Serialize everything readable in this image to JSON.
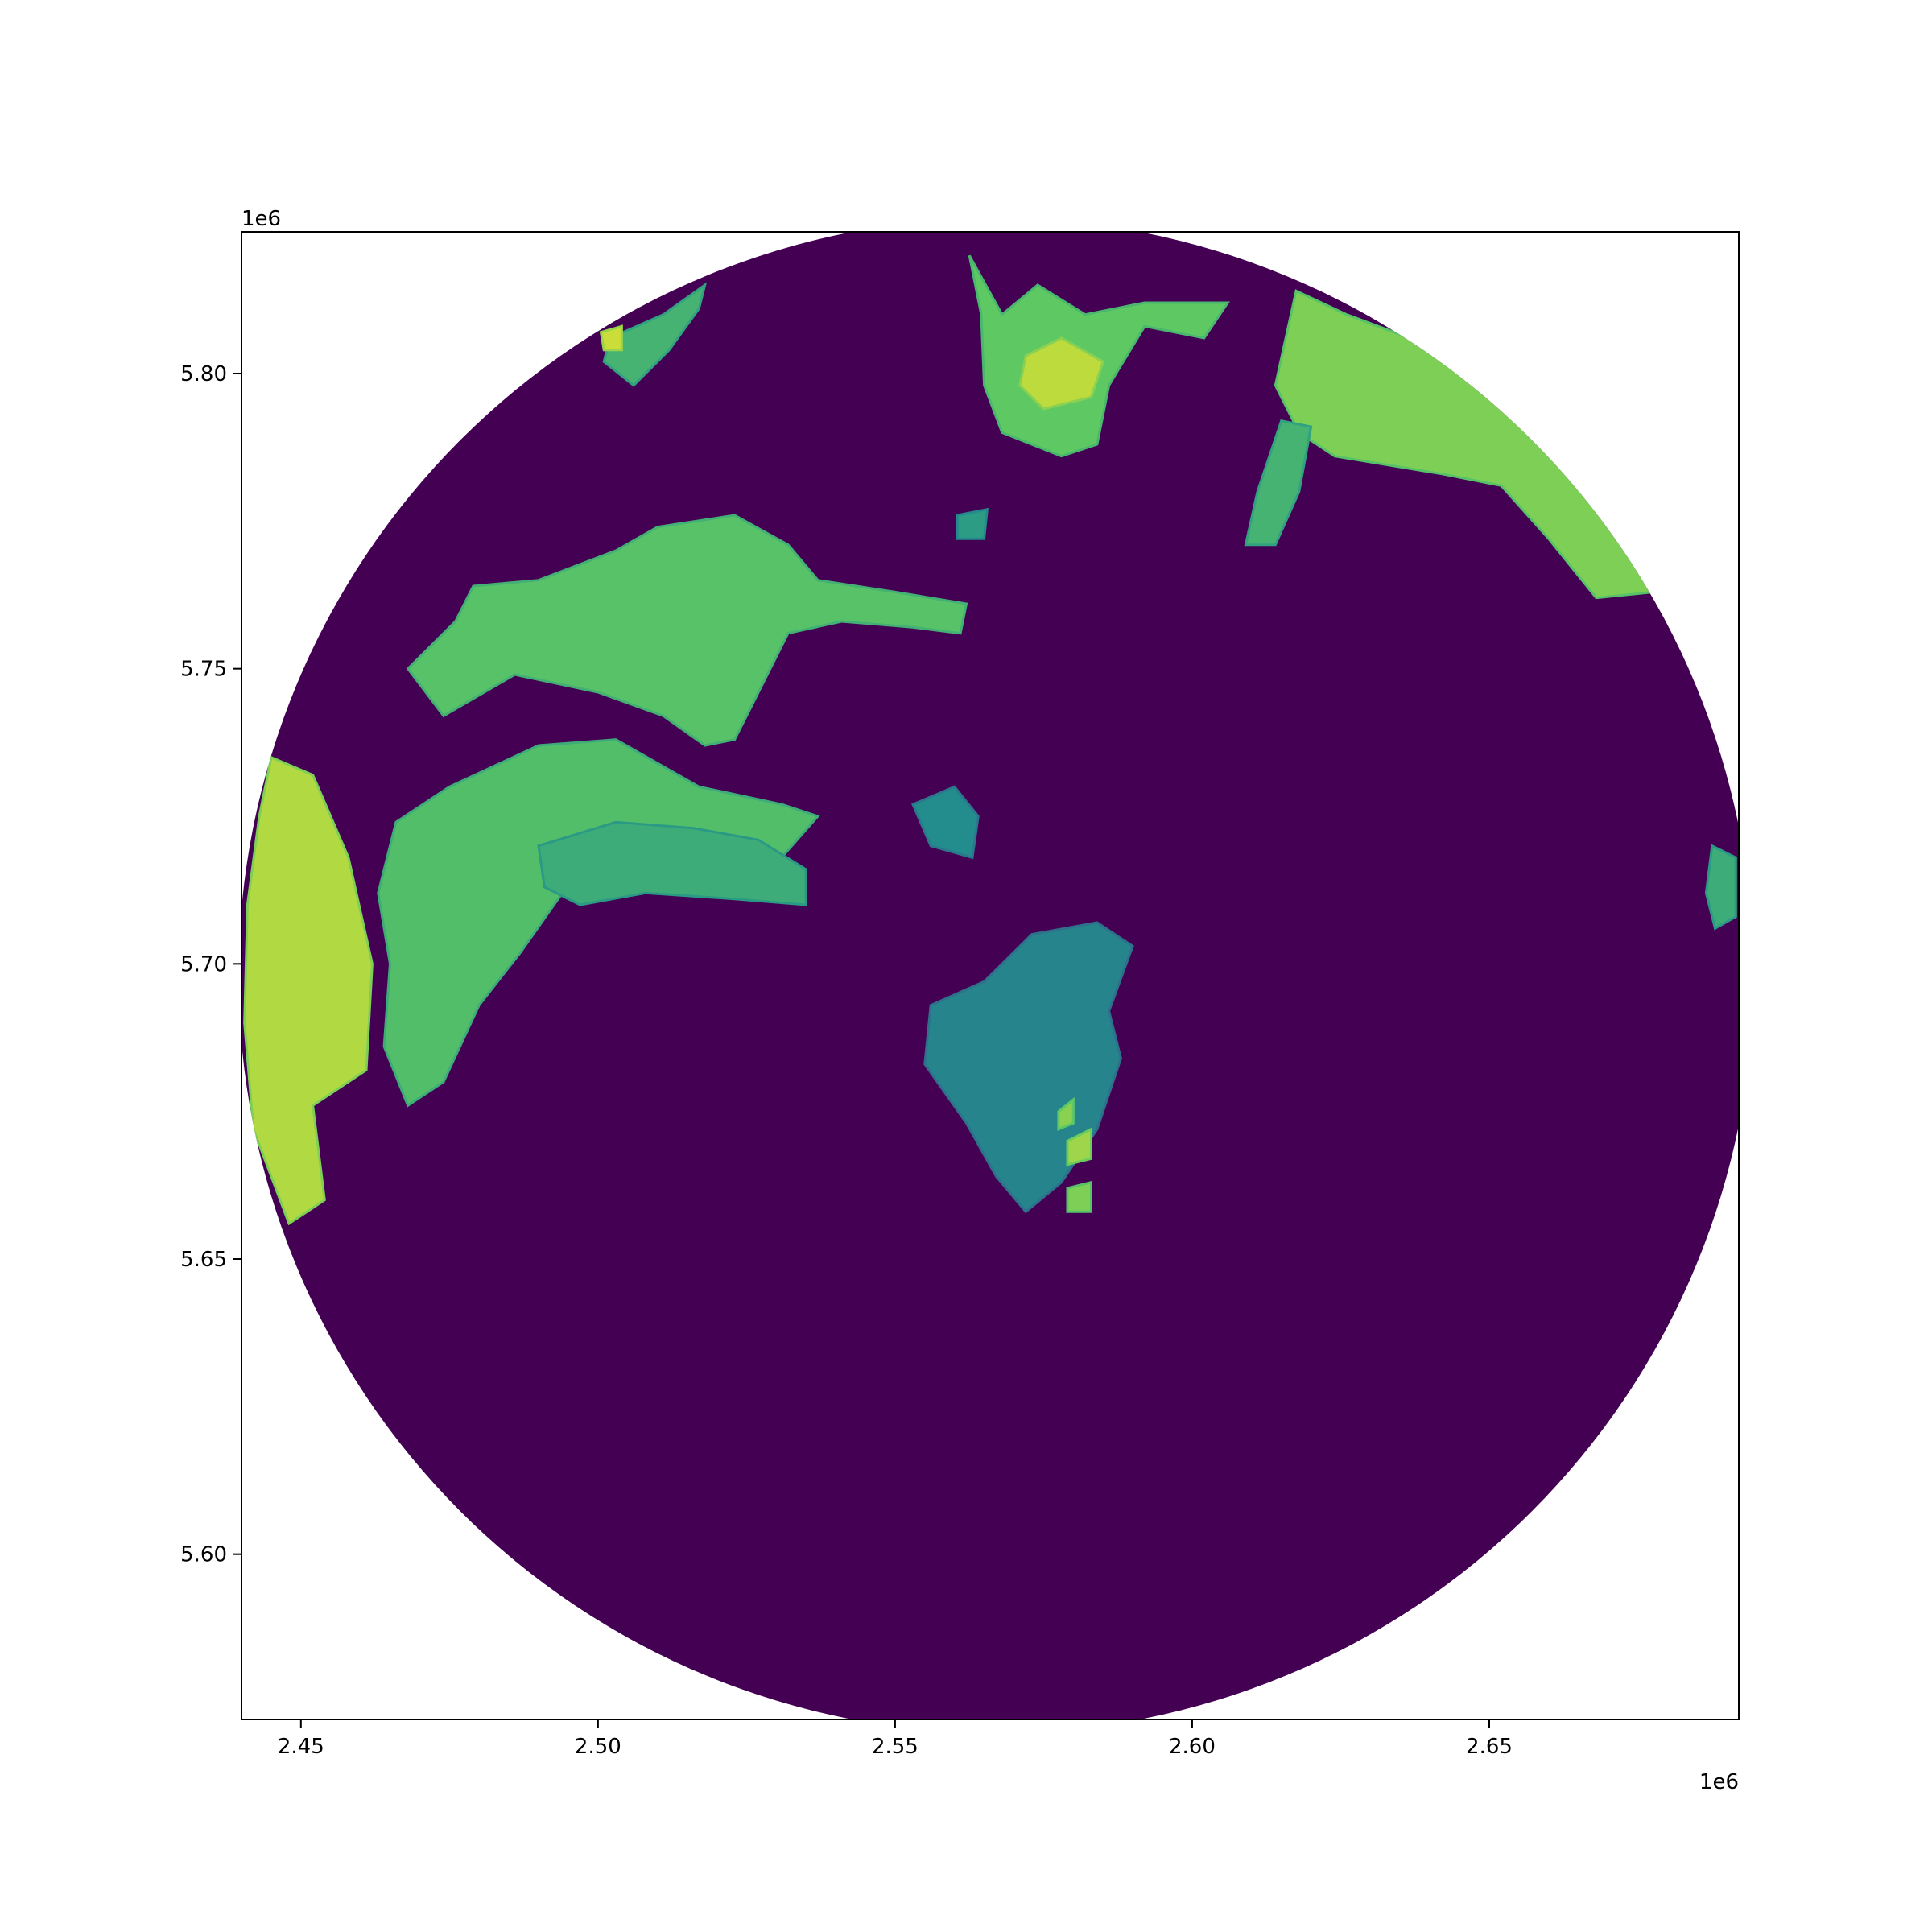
{
  "chart_data": {
    "type": "heatmap",
    "title": "",
    "xlabel": "",
    "ylabel": "",
    "x_offset_label": "1e6",
    "y_offset_label": "1e6",
    "xlim": [
      2.44,
      2.692
    ],
    "ylim": [
      5.572,
      5.824
    ],
    "xticks": [
      {
        "value": 2.45,
        "label": "2.45"
      },
      {
        "value": 2.5,
        "label": "2.50"
      },
      {
        "value": 2.55,
        "label": "2.55"
      },
      {
        "value": 2.6,
        "label": "2.60"
      },
      {
        "value": 2.65,
        "label": "2.65"
      }
    ],
    "yticks": [
      {
        "value": 5.6,
        "label": "5.60"
      },
      {
        "value": 5.65,
        "label": "5.65"
      },
      {
        "value": 5.7,
        "label": "5.70"
      },
      {
        "value": 5.75,
        "label": "5.75"
      },
      {
        "value": 5.8,
        "label": "5.80"
      }
    ],
    "grid": false,
    "colormap": "viridis",
    "background_color": "#440154",
    "coverage": {
      "center": [
        2.567,
        5.698
      ],
      "radius": 0.1275
    },
    "regions": [
      {
        "id": "north-cell",
        "level": 0.75,
        "polygon": [
          [
            2.5625,
            5.82
          ],
          [
            2.568,
            5.81
          ],
          [
            2.574,
            5.815
          ],
          [
            2.582,
            5.81
          ],
          [
            2.592,
            5.812
          ],
          [
            2.606,
            5.812
          ],
          [
            2.602,
            5.806
          ],
          [
            2.592,
            5.808
          ],
          [
            2.586,
            5.798
          ],
          [
            2.584,
            5.788
          ],
          [
            2.578,
            5.786
          ],
          [
            2.568,
            5.79
          ],
          [
            2.565,
            5.798
          ],
          [
            2.5645,
            5.81
          ]
        ]
      },
      {
        "id": "north-cell-core",
        "level": 0.9,
        "polygon": [
          [
            2.572,
            5.803
          ],
          [
            2.578,
            5.806
          ],
          [
            2.585,
            5.802
          ],
          [
            2.583,
            5.796
          ],
          [
            2.575,
            5.794
          ],
          [
            2.571,
            5.798
          ]
        ]
      },
      {
        "id": "northeast-edge",
        "level": 0.8,
        "polygon": [
          [
            2.6175,
            5.814
          ],
          [
            2.626,
            5.81
          ],
          [
            2.642,
            5.804
          ],
          [
            2.656,
            5.795
          ],
          [
            2.668,
            5.779
          ],
          [
            2.678,
            5.763
          ],
          [
            2.668,
            5.762
          ],
          [
            2.66,
            5.772
          ],
          [
            2.652,
            5.781
          ],
          [
            2.642,
            5.783
          ],
          [
            2.624,
            5.786
          ],
          [
            2.618,
            5.79
          ],
          [
            2.614,
            5.798
          ]
        ]
      },
      {
        "id": "northeast-finger",
        "level": 0.65,
        "polygon": [
          [
            2.615,
            5.792
          ],
          [
            2.62,
            5.791
          ],
          [
            2.618,
            5.78
          ],
          [
            2.614,
            5.771
          ],
          [
            2.609,
            5.771
          ],
          [
            2.611,
            5.78
          ]
        ]
      },
      {
        "id": "northwest-cells",
        "level": 0.65,
        "polygon": [
          [
            2.502,
            5.806
          ],
          [
            2.511,
            5.81
          ],
          [
            2.518,
            5.815
          ],
          [
            2.517,
            5.811
          ],
          [
            2.512,
            5.804
          ],
          [
            2.506,
            5.798
          ],
          [
            2.501,
            5.802
          ]
        ]
      },
      {
        "id": "northwest-core",
        "level": 0.92,
        "polygon": [
          [
            2.5005,
            5.807
          ],
          [
            2.504,
            5.808
          ],
          [
            2.504,
            5.804
          ],
          [
            2.501,
            5.804
          ]
        ]
      },
      {
        "id": "band-upper",
        "level": 0.72,
        "polygon": [
          [
            2.479,
            5.764
          ],
          [
            2.49,
            5.765
          ],
          [
            2.503,
            5.77
          ],
          [
            2.51,
            5.774
          ],
          [
            2.523,
            5.776
          ],
          [
            2.532,
            5.771
          ],
          [
            2.537,
            5.765
          ],
          [
            2.55,
            5.763
          ],
          [
            2.562,
            5.761
          ],
          [
            2.561,
            5.756
          ],
          [
            2.553,
            5.757
          ],
          [
            2.541,
            5.758
          ],
          [
            2.532,
            5.756
          ],
          [
            2.526,
            5.744
          ],
          [
            2.523,
            5.738
          ],
          [
            2.518,
            5.737
          ],
          [
            2.511,
            5.742
          ],
          [
            2.5,
            5.746
          ],
          [
            2.486,
            5.749
          ],
          [
            2.474,
            5.742
          ],
          [
            2.468,
            5.75
          ],
          [
            2.476,
            5.758
          ]
        ]
      },
      {
        "id": "band-middle",
        "level": 0.7,
        "polygon": [
          [
            2.466,
            5.724
          ],
          [
            2.475,
            5.73
          ],
          [
            2.49,
            5.737
          ],
          [
            2.503,
            5.738
          ],
          [
            2.517,
            5.73
          ],
          [
            2.531,
            5.727
          ],
          [
            2.537,
            5.725
          ],
          [
            2.53,
            5.717
          ],
          [
            2.519,
            5.714
          ],
          [
            2.504,
            5.716
          ],
          [
            2.494,
            5.712
          ],
          [
            2.487,
            5.702
          ],
          [
            2.48,
            5.693
          ],
          [
            2.474,
            5.68
          ],
          [
            2.468,
            5.676
          ],
          [
            2.464,
            5.686
          ],
          [
            2.465,
            5.7
          ],
          [
            2.463,
            5.712
          ]
        ]
      },
      {
        "id": "band-lower",
        "level": 0.62,
        "polygon": [
          [
            2.49,
            5.72
          ],
          [
            2.503,
            5.724
          ],
          [
            2.516,
            5.723
          ],
          [
            2.527,
            5.721
          ],
          [
            2.535,
            5.716
          ],
          [
            2.535,
            5.71
          ],
          [
            2.523,
            5.711
          ],
          [
            2.508,
            5.712
          ],
          [
            2.497,
            5.71
          ],
          [
            2.491,
            5.713
          ]
        ]
      },
      {
        "id": "west-edge",
        "level": 0.88,
        "polygon": [
          [
            2.445,
            5.735
          ],
          [
            2.452,
            5.732
          ],
          [
            2.458,
            5.718
          ],
          [
            2.462,
            5.7
          ],
          [
            2.461,
            5.682
          ],
          [
            2.452,
            5.676
          ],
          [
            2.454,
            5.66
          ],
          [
            2.448,
            5.656
          ],
          [
            2.442,
            5.672
          ],
          [
            2.4405,
            5.69
          ],
          [
            2.441,
            5.71
          ],
          [
            2.443,
            5.725
          ]
        ]
      },
      {
        "id": "central-scatter",
        "level": 0.45,
        "polygon": [
          [
            2.556,
            5.693
          ],
          [
            2.565,
            5.697
          ],
          [
            2.573,
            5.705
          ],
          [
            2.584,
            5.707
          ],
          [
            2.59,
            5.703
          ],
          [
            2.586,
            5.692
          ],
          [
            2.588,
            5.684
          ],
          [
            2.584,
            5.672
          ],
          [
            2.578,
            5.663
          ],
          [
            2.572,
            5.658
          ],
          [
            2.567,
            5.664
          ],
          [
            2.562,
            5.673
          ],
          [
            2.555,
            5.683
          ]
        ]
      },
      {
        "id": "central-core-1",
        "level": 0.85,
        "polygon": [
          [
            2.579,
            5.67
          ],
          [
            2.583,
            5.672
          ],
          [
            2.583,
            5.667
          ],
          [
            2.579,
            5.666
          ]
        ]
      },
      {
        "id": "central-core-2",
        "level": 0.82,
        "polygon": [
          [
            2.5775,
            5.675
          ],
          [
            2.58,
            5.677
          ],
          [
            2.58,
            5.673
          ],
          [
            2.5775,
            5.672
          ]
        ]
      },
      {
        "id": "central-core-3",
        "level": 0.8,
        "polygon": [
          [
            2.579,
            5.662
          ],
          [
            2.583,
            5.663
          ],
          [
            2.583,
            5.658
          ],
          [
            2.579,
            5.658
          ]
        ]
      },
      {
        "id": "central-small-north",
        "level": 0.48,
        "polygon": [
          [
            2.553,
            5.727
          ],
          [
            2.56,
            5.73
          ],
          [
            2.564,
            5.725
          ],
          [
            2.563,
            5.718
          ],
          [
            2.556,
            5.72
          ]
        ]
      },
      {
        "id": "east-edge",
        "level": 0.62,
        "polygon": [
          [
            2.6875,
            5.72
          ],
          [
            2.6915,
            5.718
          ],
          [
            2.6915,
            5.708
          ],
          [
            2.688,
            5.706
          ],
          [
            2.6865,
            5.712
          ]
        ]
      },
      {
        "id": "far-north-spur",
        "level": 0.55,
        "polygon": [
          [
            2.5605,
            5.776
          ],
          [
            2.5655,
            5.777
          ],
          [
            2.565,
            5.772
          ],
          [
            2.5605,
            5.772
          ]
        ]
      }
    ]
  }
}
